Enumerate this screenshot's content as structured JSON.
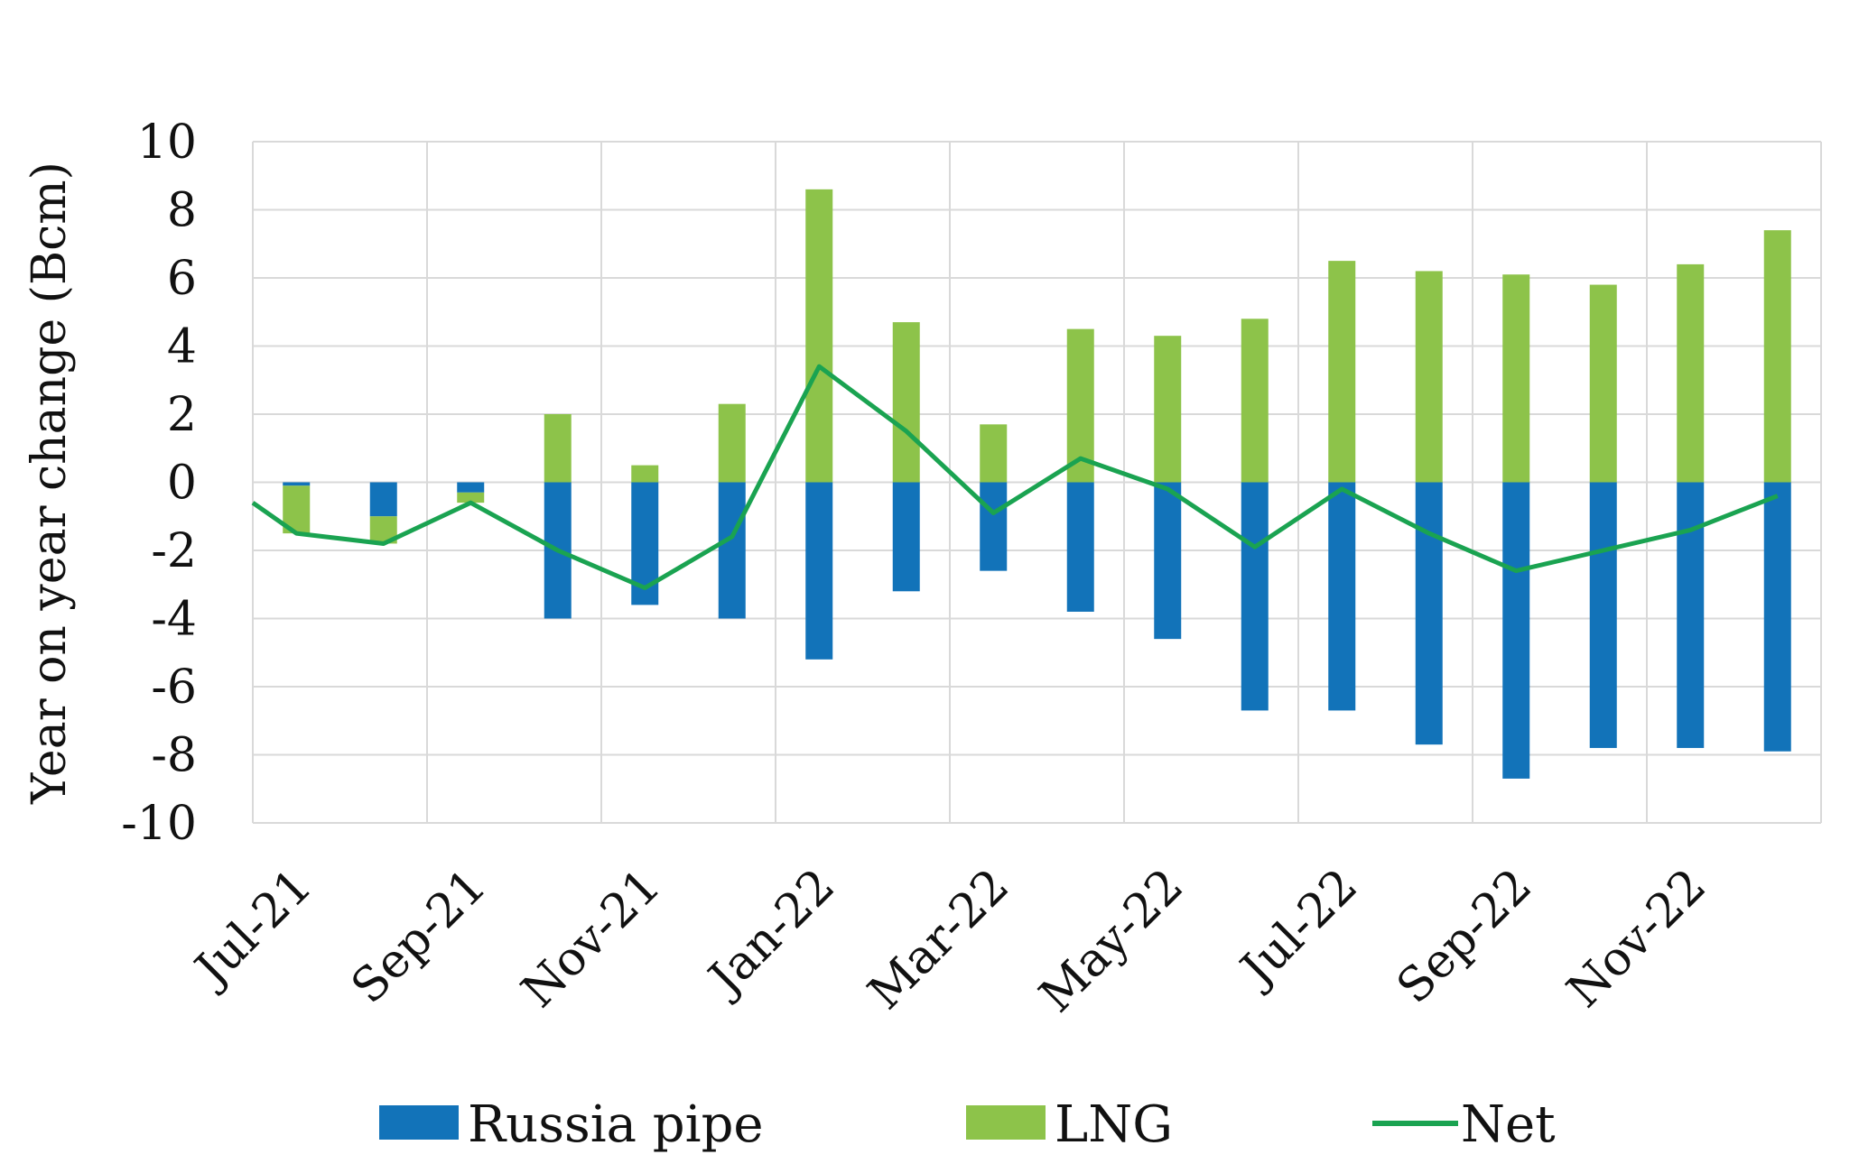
{
  "chart_data": {
    "type": "bar",
    "stacked": true,
    "x": [
      "Jul-21",
      "Aug-21",
      "Sep-21",
      "Oct-21",
      "Nov-21",
      "Dec-21",
      "Jan-22",
      "Feb-22",
      "Mar-22",
      "Apr-22",
      "May-22",
      "Jun-22",
      "Jul-22",
      "Aug-22",
      "Sep-22",
      "Oct-22",
      "Nov-22",
      "Dec-22"
    ],
    "x_tick_labels": [
      "Jul-21",
      "Sep-21",
      "Nov-21",
      "Jan-22",
      "Mar-22",
      "May-22",
      "Jul-22",
      "Sep-22",
      "Nov-22"
    ],
    "series": [
      {
        "name": "Russia pipe",
        "kind": "bar",
        "color": "#1273b9",
        "values": [
          -0.1,
          -1.0,
          -0.3,
          -4.0,
          -3.6,
          -4.0,
          -5.2,
          -3.2,
          -2.6,
          -3.8,
          -4.6,
          -6.7,
          -6.7,
          -7.7,
          -8.7,
          -7.8,
          -7.8,
          -7.9
        ]
      },
      {
        "name": "LNG",
        "kind": "bar",
        "color": "#8dc34a",
        "values": [
          -1.4,
          -0.8,
          -0.3,
          2.0,
          0.5,
          2.3,
          8.6,
          4.7,
          1.7,
          4.5,
          4.3,
          4.8,
          6.5,
          6.2,
          6.1,
          5.8,
          6.4,
          7.4
        ]
      },
      {
        "name": "Net",
        "kind": "line",
        "color": "#1aa351",
        "values": [
          -1.5,
          -1.8,
          -0.6,
          -2.0,
          -3.1,
          -1.6,
          3.4,
          1.5,
          -0.9,
          0.7,
          -0.2,
          -1.9,
          -0.2,
          -1.5,
          -2.6,
          -2.0,
          -1.4,
          -0.4
        ]
      }
    ],
    "ylabel": "Year on year change (Bcm)",
    "ylim": [
      -10,
      10
    ],
    "yticks": [
      10,
      8,
      6,
      4,
      2,
      0,
      -2,
      -4,
      -6,
      -8,
      -10
    ],
    "grid": true,
    "legend": "bottom"
  }
}
